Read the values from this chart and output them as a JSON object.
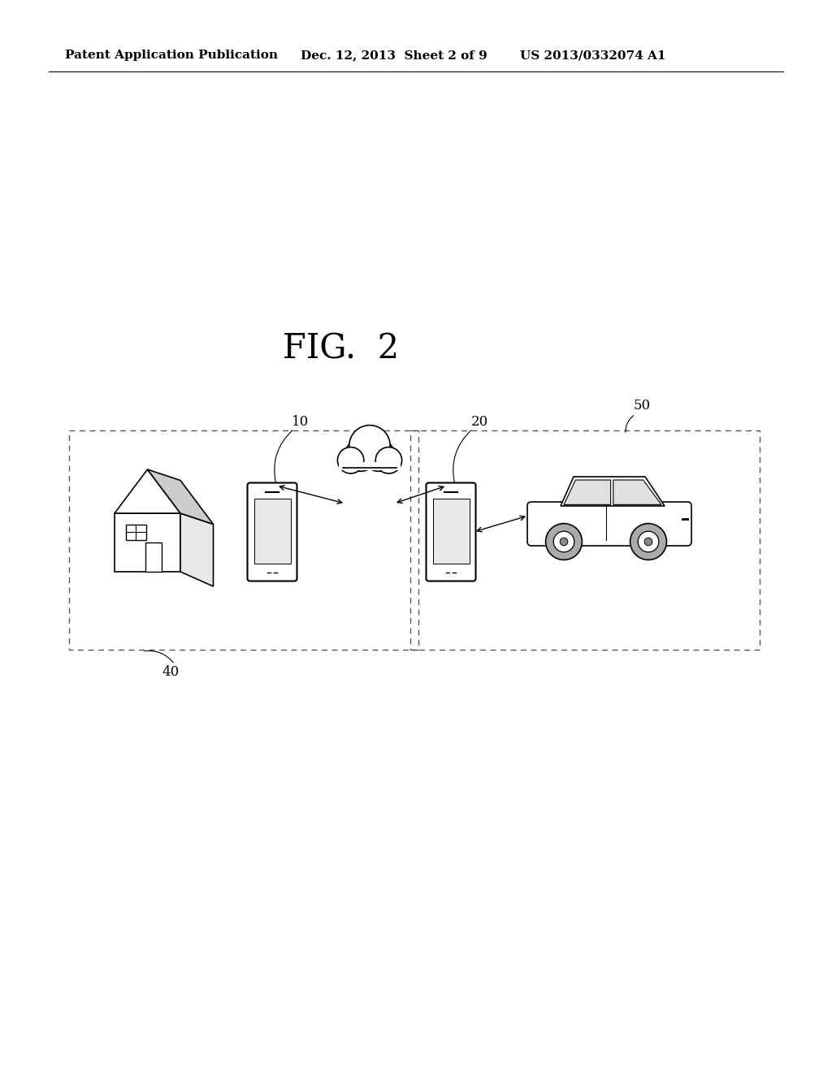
{
  "bg_color": "#ffffff",
  "header_left": "Patent Application Publication",
  "header_mid": "Dec. 12, 2013  Sheet 2 of 9",
  "header_right": "US 2013/0332074 A1",
  "fig_label": "FIG.  2",
  "label_10": "10",
  "label_20": "20",
  "label_40": "40",
  "label_50": "50",
  "label_color": "#000000",
  "label_fontsize": 12,
  "header_fontsize": 11
}
